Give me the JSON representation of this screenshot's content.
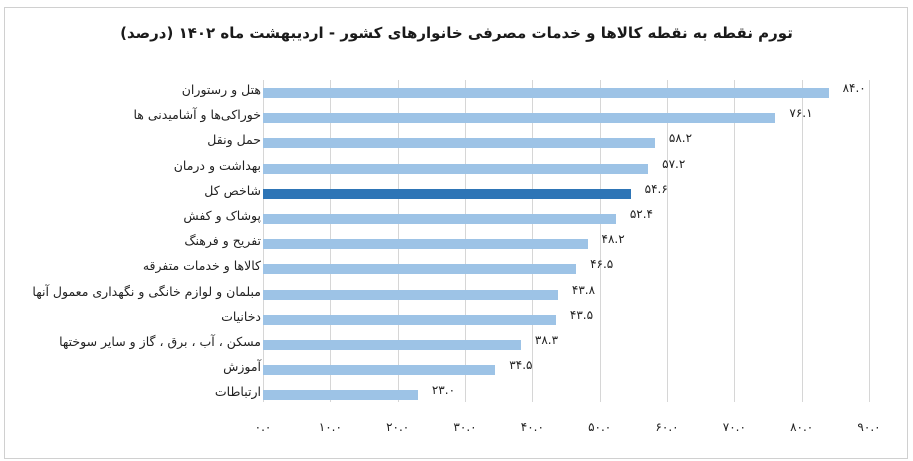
{
  "chart_data": {
    "type": "bar",
    "orientation": "horizontal",
    "title": "تورم نقطه به نقطه کالاها و خدمات مصرفی خانوارهای کشور - اردیبهشت ماه ۱۴۰۲ (درصد)",
    "xlabel": "",
    "ylabel": "",
    "xlim": [
      0,
      90
    ],
    "grid": true,
    "legend": "none",
    "highlight_category": "شاخص کل",
    "colors": {
      "bar": "#9dc3e6",
      "highlight": "#2e75b6",
      "grid": "#d6d6d6"
    },
    "categories": [
      "هتل و رستوران",
      "خوراکی‌ها و آشامیدنی ها",
      "حمل ونقل",
      "بهداشت و درمان",
      "شاخص کل",
      "پوشاک و کفش",
      "تفریح و فرهنگ",
      "کالاها و خدمات متفرقه",
      "مبلمان و لوازم خانگی و نگهداری معمول آنها",
      "دخانیات",
      "مسکن ، آب ، برق ، گاز و سایر سوختها",
      "آموزش",
      "ارتباطات"
    ],
    "values": [
      84.0,
      76.1,
      58.2,
      57.2,
      54.6,
      52.4,
      48.2,
      46.5,
      43.8,
      43.5,
      38.3,
      34.5,
      23.0
    ],
    "value_labels": [
      "۸۴.۰",
      "۷۶.۱",
      "۵۸.۲",
      "۵۷.۲",
      "۵۴.۶",
      "۵۲.۴",
      "۴۸.۲",
      "۴۶.۵",
      "۴۳.۸",
      "۴۳.۵",
      "۳۸.۳",
      "۳۴.۵",
      "۲۳.۰"
    ],
    "xticks": [
      0,
      10,
      20,
      30,
      40,
      50,
      60,
      70,
      80,
      90
    ],
    "xtick_labels": [
      "۰.۰",
      "۱۰.۰",
      "۲۰.۰",
      "۳۰.۰",
      "۴۰.۰",
      "۵۰.۰",
      "۶۰.۰",
      "۷۰.۰",
      "۸۰.۰",
      "۹۰.۰"
    ]
  }
}
